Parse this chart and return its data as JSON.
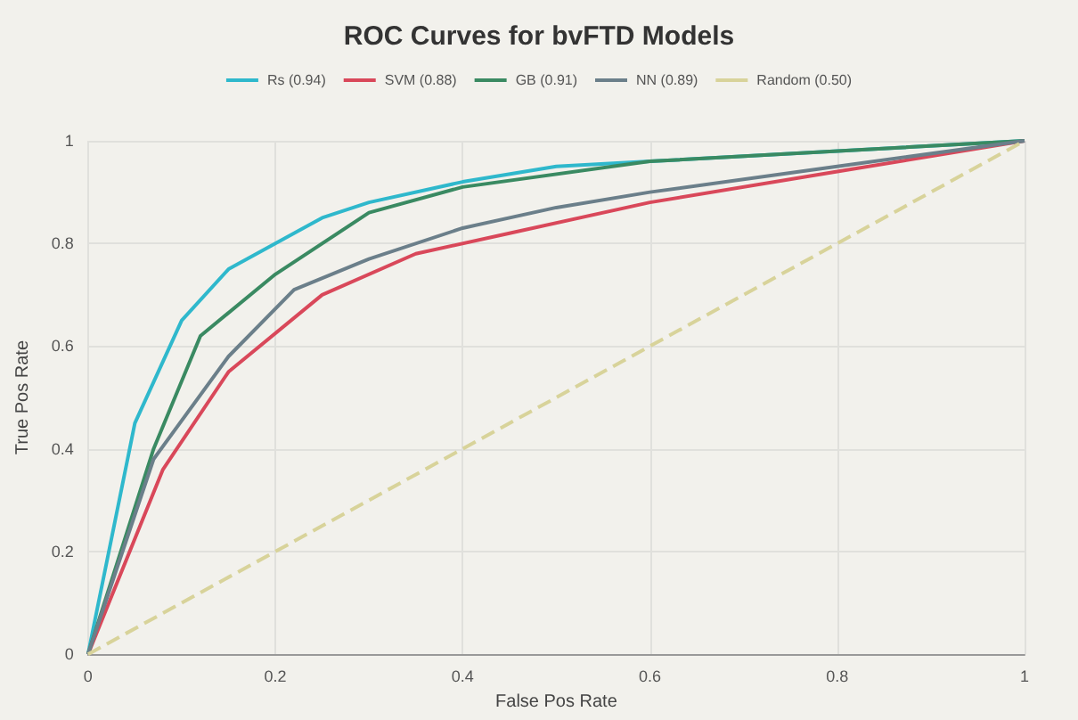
{
  "chart_data": {
    "type": "line",
    "title": "ROC Curves for bvFTD Models",
    "xlabel": "False Pos Rate",
    "ylabel": "True Pos Rate",
    "xlim": [
      0,
      1
    ],
    "ylim": [
      0,
      1
    ],
    "xticks": [
      0,
      0.2,
      0.4,
      0.6,
      0.8,
      1
    ],
    "yticks": [
      0,
      0.2,
      0.4,
      0.6,
      0.8,
      1
    ],
    "grid": true,
    "legend": "top",
    "marker": "none",
    "series": [
      {
        "name": "Rs (0.94)",
        "color": "#2fb8cc",
        "x": [
          0,
          0.05,
          0.1,
          0.15,
          0.25,
          0.3,
          0.4,
          0.5,
          0.6,
          1
        ],
        "values": [
          0,
          0.45,
          0.65,
          0.75,
          0.85,
          0.88,
          0.92,
          0.95,
          0.96,
          1
        ]
      },
      {
        "name": "SVM (0.88)",
        "color": "#d9485a",
        "x": [
          0,
          0.08,
          0.15,
          0.25,
          0.35,
          0.45,
          0.6,
          0.8,
          1
        ],
        "values": [
          0,
          0.36,
          0.55,
          0.7,
          0.78,
          0.82,
          0.88,
          0.94,
          1
        ]
      },
      {
        "name": "GB (0.91)",
        "color": "#3a8a62",
        "x": [
          0,
          0.07,
          0.12,
          0.2,
          0.3,
          0.4,
          0.6,
          1
        ],
        "values": [
          0,
          0.4,
          0.62,
          0.74,
          0.86,
          0.91,
          0.96,
          1
        ]
      },
      {
        "name": "NN (0.89)",
        "color": "#6b7f8a",
        "x": [
          0,
          0.07,
          0.15,
          0.22,
          0.3,
          0.4,
          0.5,
          0.6,
          0.8,
          1
        ],
        "values": [
          0,
          0.38,
          0.58,
          0.71,
          0.77,
          0.83,
          0.87,
          0.9,
          0.95,
          1
        ]
      },
      {
        "name": "Random (0.50)",
        "color": "#d8d39a",
        "x": [
          0,
          1
        ],
        "values": [
          0,
          1
        ],
        "line_style": "dashed"
      }
    ]
  }
}
